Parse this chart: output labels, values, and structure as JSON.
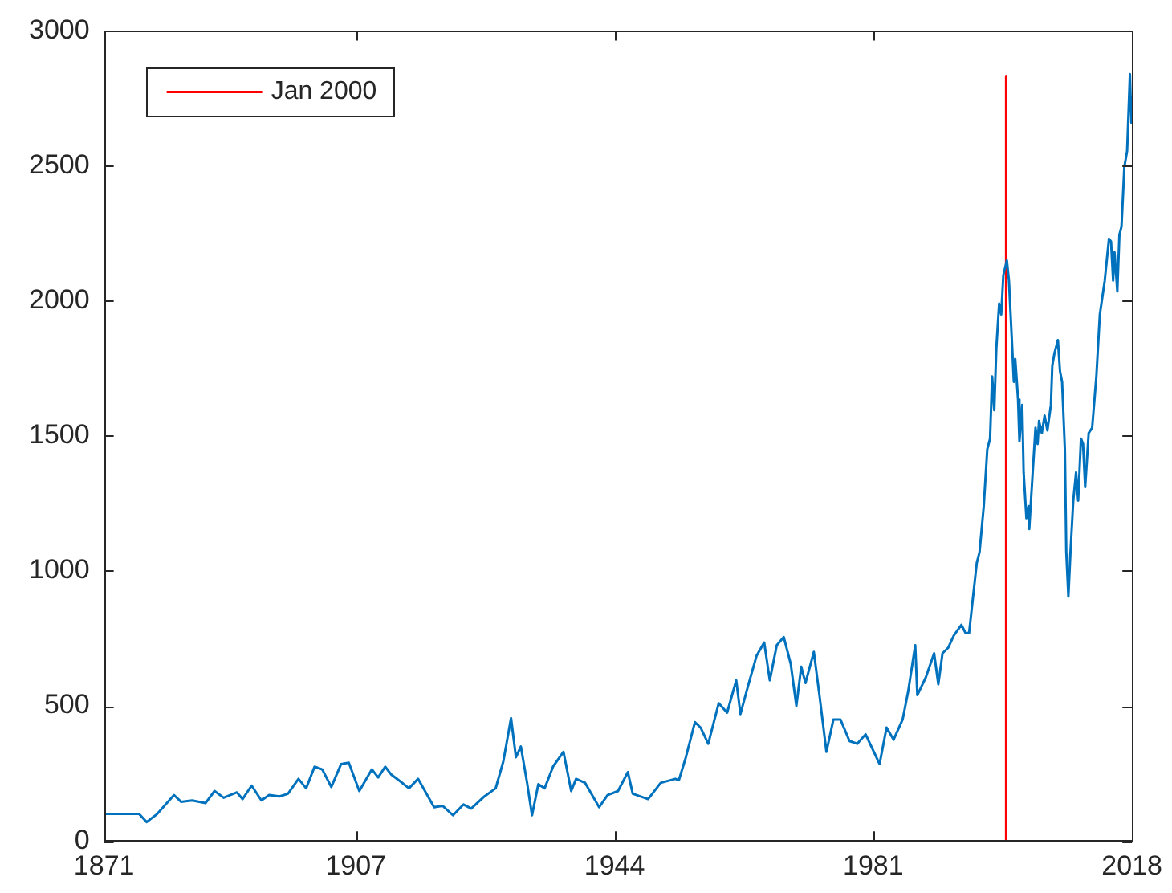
{
  "chart_data": {
    "type": "line",
    "xlim": [
      1871,
      2018
    ],
    "xticks": [
      1871,
      1907,
      1944,
      1981,
      2018
    ],
    "ylim": [
      0,
      3000
    ],
    "yticks": [
      0,
      500,
      1000,
      1500,
      2000,
      2500,
      3000
    ],
    "legend": "top left",
    "series": [
      {
        "color": "#0072bd",
        "x": [
          1871,
          1876,
          1877.1,
          1878.6,
          1881,
          1882,
          1883.6,
          1885.5,
          1886.8,
          1888.1,
          1890,
          1890.8,
          1892.1,
          1893.5,
          1894.6,
          1896.1,
          1897.3,
          1898.8,
          1899.9,
          1901.1,
          1902.2,
          1903.5,
          1904.9,
          1906,
          1907.5,
          1909.3,
          1910.2,
          1911.2,
          1912.1,
          1913.4,
          1914.6,
          1915.9,
          1917.1,
          1918.2,
          1919.4,
          1920.9,
          1922.4,
          1923.5,
          1925.4,
          1927,
          1928.1,
          1929.2,
          1929.9,
          1930.6,
          1931.5,
          1932.2,
          1933.1,
          1934,
          1935.2,
          1936.7,
          1937.8,
          1938.5,
          1939.8,
          1941.8,
          1943,
          1944.5,
          1945.9,
          1946.6,
          1948.8,
          1950.6,
          1952.7,
          1953.2,
          1954.2,
          1955.5,
          1956.3,
          1957.4,
          1958.9,
          1960.1,
          1961.4,
          1962,
          1963.1,
          1964.3,
          1965.4,
          1966.2,
          1967.2,
          1968.2,
          1969.2,
          1970,
          1970.7,
          1971.3,
          1972.5,
          1973.3,
          1974.3,
          1975.3,
          1976.3,
          1977.6,
          1978.7,
          1979.9,
          1980.9,
          1981.9,
          1982.9,
          1983.9,
          1985.2,
          1986,
          1987,
          1987.3,
          1988.5,
          1989.7,
          1990.3,
          1990.9,
          1991.7,
          1992.5,
          1993.6,
          1994.2,
          1994.7,
          1995.8,
          1996.2,
          1996.8,
          1997.3,
          1997.7,
          1998,
          1998.3,
          1998.6,
          1999,
          1999.3,
          1999.6,
          2000.1,
          2000.4,
          2000.8,
          2001.1,
          2001.3,
          2001.7,
          2001.9,
          2002.3,
          2002.5,
          2002.9,
          2003.2,
          2003.3,
          2003.8,
          2004.2,
          2004.5,
          2004.7,
          2005.1,
          2005.5,
          2005.9,
          2006.4,
          2006.6,
          2006.9,
          2007.4,
          2007.7,
          2008,
          2008.4,
          2008.6,
          2008.9,
          2009.2,
          2009.6,
          2010,
          2010.3,
          2010.7,
          2011,
          2011.3,
          2011.8,
          2012.3,
          2012.9,
          2013.4,
          2014.1,
          2014.7,
          2015,
          2015.3,
          2015.5,
          2015.9,
          2016.2,
          2016.5,
          2016.9,
          2017.3,
          2017.7,
          2017.9,
          2018
        ],
        "values": [
          100,
          100,
          70,
          100,
          170,
          145,
          150,
          140,
          185,
          160,
          180,
          155,
          205,
          150,
          170,
          165,
          175,
          230,
          195,
          275,
          265,
          200,
          285,
          290,
          185,
          265,
          235,
          275,
          245,
          220,
          195,
          230,
          175,
          125,
          130,
          95,
          135,
          120,
          165,
          195,
          295,
          455,
          310,
          350,
          215,
          95,
          210,
          195,
          275,
          330,
          185,
          230,
          215,
          125,
          170,
          185,
          255,
          175,
          155,
          215,
          230,
          225,
          310,
          440,
          420,
          360,
          510,
          475,
          595,
          470,
          575,
          685,
          735,
          595,
          725,
          755,
          655,
          500,
          645,
          585,
          700,
          540,
          330,
          450,
          450,
          370,
          360,
          395,
          340,
          285,
          420,
          375,
          450,
          555,
          725,
          540,
          605,
          695,
          580,
          695,
          715,
          760,
          800,
          770,
          770,
          1030,
          1070,
          1240,
          1450,
          1490,
          1720,
          1595,
          1825,
          1990,
          1950,
          2095,
          2150,
          2075,
          1865,
          1700,
          1785,
          1635,
          1480,
          1615,
          1365,
          1195,
          1240,
          1155,
          1365,
          1530,
          1470,
          1555,
          1510,
          1575,
          1520,
          1615,
          1760,
          1805,
          1855,
          1740,
          1700,
          1450,
          1070,
          905,
          1070,
          1260,
          1365,
          1260,
          1490,
          1470,
          1310,
          1510,
          1530,
          1720,
          1950,
          2075,
          2230,
          2220,
          2075,
          2180,
          2035,
          2245,
          2275,
          2495,
          2555,
          2840,
          2660,
          2755
        ]
      },
      {
        "name": "Jan 2000",
        "color": "#ff0000",
        "x": [
          2000,
          2000
        ],
        "values": [
          0,
          2830
        ]
      }
    ]
  }
}
